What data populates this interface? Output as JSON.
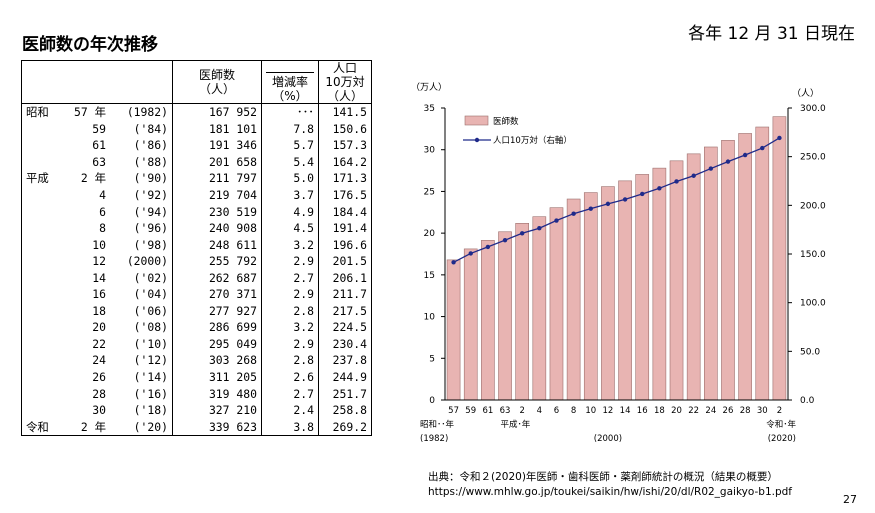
{
  "title": "医師数の年次推移",
  "as_of": "各年 12 月 31 日現在",
  "page_number": "27",
  "table": {
    "headers": {
      "doctors": [
        "医師数",
        "（人）"
      ],
      "rate": [
        "増減率",
        "（%）"
      ],
      "per_pop": [
        "人口",
        "10万対",
        "（人）"
      ]
    },
    "rows": [
      {
        "era": "昭和",
        "year": "57 年",
        "western": "(1982)",
        "doctors": "167 952",
        "rate": "･･･",
        "per_pop": "141.5"
      },
      {
        "era": "",
        "year": "59",
        "western": "('84)",
        "doctors": "181 101",
        "rate": "7.8",
        "per_pop": "150.6"
      },
      {
        "era": "",
        "year": "61",
        "western": "('86)",
        "doctors": "191 346",
        "rate": "5.7",
        "per_pop": "157.3"
      },
      {
        "era": "",
        "year": "63",
        "western": "('88)",
        "doctors": "201 658",
        "rate": "5.4",
        "per_pop": "164.2"
      },
      {
        "era": "平成",
        "year": "2 年",
        "western": "('90)",
        "doctors": "211 797",
        "rate": "5.0",
        "per_pop": "171.3"
      },
      {
        "era": "",
        "year": "4",
        "western": "('92)",
        "doctors": "219 704",
        "rate": "3.7",
        "per_pop": "176.5"
      },
      {
        "era": "",
        "year": "6",
        "western": "('94)",
        "doctors": "230 519",
        "rate": "4.9",
        "per_pop": "184.4"
      },
      {
        "era": "",
        "year": "8",
        "western": "('96)",
        "doctors": "240 908",
        "rate": "4.5",
        "per_pop": "191.4"
      },
      {
        "era": "",
        "year": "10",
        "western": "('98)",
        "doctors": "248 611",
        "rate": "3.2",
        "per_pop": "196.6"
      },
      {
        "era": "",
        "year": "12",
        "western": "(2000)",
        "doctors": "255 792",
        "rate": "2.9",
        "per_pop": "201.5"
      },
      {
        "era": "",
        "year": "14",
        "western": "('02)",
        "doctors": "262 687",
        "rate": "2.7",
        "per_pop": "206.1"
      },
      {
        "era": "",
        "year": "16",
        "western": "('04)",
        "doctors": "270 371",
        "rate": "2.9",
        "per_pop": "211.7"
      },
      {
        "era": "",
        "year": "18",
        "western": "('06)",
        "doctors": "277 927",
        "rate": "2.8",
        "per_pop": "217.5"
      },
      {
        "era": "",
        "year": "20",
        "western": "('08)",
        "doctors": "286 699",
        "rate": "3.2",
        "per_pop": "224.5"
      },
      {
        "era": "",
        "year": "22",
        "western": "('10)",
        "doctors": "295 049",
        "rate": "2.9",
        "per_pop": "230.4"
      },
      {
        "era": "",
        "year": "24",
        "western": "('12)",
        "doctors": "303 268",
        "rate": "2.8",
        "per_pop": "237.8"
      },
      {
        "era": "",
        "year": "26",
        "western": "('14)",
        "doctors": "311 205",
        "rate": "2.6",
        "per_pop": "244.9"
      },
      {
        "era": "",
        "year": "28",
        "western": "('16)",
        "doctors": "319 480",
        "rate": "2.7",
        "per_pop": "251.7"
      },
      {
        "era": "",
        "year": "30",
        "western": "('18)",
        "doctors": "327 210",
        "rate": "2.4",
        "per_pop": "258.8"
      },
      {
        "era": "令和",
        "year": "2 年",
        "western": "('20)",
        "doctors": "339 623",
        "rate": "3.8",
        "per_pop": "269.2"
      }
    ]
  },
  "chart_data": {
    "type": "bar",
    "categories": [
      "57",
      "59",
      "61",
      "63",
      "2",
      "4",
      "6",
      "8",
      "10",
      "12",
      "14",
      "16",
      "18",
      "20",
      "22",
      "24",
      "26",
      "28",
      "30",
      "2"
    ],
    "series": [
      {
        "name": "医師数",
        "axis": "left",
        "type": "bar",
        "color": "#e8b4b2",
        "values": [
          16.7952,
          18.1101,
          19.1346,
          20.1658,
          21.1797,
          21.9704,
          23.0519,
          24.0908,
          24.8611,
          25.5792,
          26.2687,
          27.0371,
          27.7927,
          28.6699,
          29.5049,
          30.3268,
          31.1205,
          31.948,
          32.721,
          33.9623
        ]
      },
      {
        "name": "人口10万対（右軸）",
        "axis": "right",
        "type": "line",
        "color": "#1f2a8a",
        "values": [
          141.5,
          150.6,
          157.3,
          164.2,
          171.3,
          176.5,
          184.4,
          191.4,
          196.6,
          201.5,
          206.1,
          211.7,
          217.5,
          224.5,
          230.4,
          237.8,
          244.9,
          251.7,
          258.8,
          269.2
        ]
      }
    ],
    "left_axis": {
      "unit": "（万人）",
      "min": 0,
      "max": 35,
      "ticks": [
        "0",
        "5",
        "10",
        "15",
        "20",
        "25",
        "30",
        "35"
      ]
    },
    "right_axis": {
      "unit": "（人）",
      "min": 0,
      "max": 300,
      "ticks": [
        "0.0",
        "50.0",
        "100.0",
        "150.0",
        "200.0",
        "250.0",
        "300.0"
      ]
    },
    "x_sub_labels": [
      {
        "at": 0,
        "text": "昭和･･年"
      },
      {
        "at": 0,
        "text": "(1982)"
      },
      {
        "at": 4,
        "text": "平成･年"
      },
      {
        "at": 9,
        "text": "(2000)"
      },
      {
        "at": 19,
        "text": "令和･年"
      },
      {
        "at": 19,
        "text": "(2020)"
      }
    ],
    "legend_position": "top-left"
  },
  "source": {
    "line1": "出典：令和２(2020)年医師・歯科医師・薬剤師統計の概況（結果の概要）",
    "line2": "https://www.mhlw.go.jp/toukei/saikin/hw/ishi/20/dl/R02_gaikyo-b1.pdf"
  }
}
